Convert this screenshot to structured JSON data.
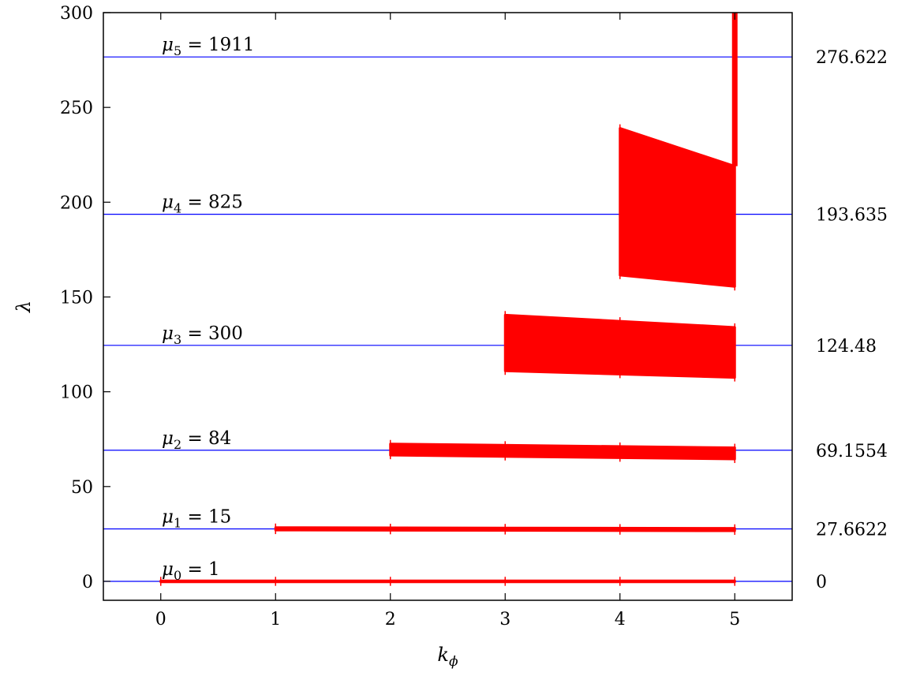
{
  "chart_data": {
    "type": "line",
    "xlabel": "k",
    "xlabel_sub": "ϕ",
    "ylabel": "λ",
    "xlim": [
      -0.5,
      5.5
    ],
    "ylim": [
      -10,
      300
    ],
    "x_ticks": [
      "0",
      "1",
      "2",
      "3",
      "4",
      "5"
    ],
    "y_ticks": [
      "0",
      "50",
      "100",
      "150",
      "200",
      "250",
      "300"
    ],
    "grid": false,
    "colors": {
      "reference_line": "#0000ff",
      "bands": "#ff0000"
    },
    "reference_lines": [
      {
        "y": 0,
        "mu_index": "0",
        "mu_value": "1",
        "right_label": "0"
      },
      {
        "y": 27.6622,
        "mu_index": "1",
        "mu_value": "15",
        "right_label": "27.6622"
      },
      {
        "y": 69.1554,
        "mu_index": "2",
        "mu_value": "84",
        "right_label": "69.1554"
      },
      {
        "y": 124.48,
        "mu_index": "3",
        "mu_value": "300",
        "right_label": "124.48"
      },
      {
        "y": 193.635,
        "mu_index": "4",
        "mu_value": "825",
        "right_label": "193.635"
      },
      {
        "y": 276.622,
        "mu_index": "5",
        "mu_value": "1911",
        "right_label": "276.622"
      }
    ],
    "bands": [
      {
        "name": "",
        "start": 0,
        "top": [
          [
            0,
            0.3
          ],
          [
            5,
            0.3
          ]
        ],
        "bottom": [
          [
            0,
            -0.3
          ],
          [
            5,
            -0.3
          ]
        ]
      },
      {
        "name": "",
        "start": 1,
        "top": [
          [
            1,
            28.4
          ],
          [
            5,
            28.0
          ]
        ],
        "bottom": [
          [
            1,
            27.0
          ],
          [
            5,
            26.6
          ]
        ]
      },
      {
        "name": "",
        "start": 2,
        "top": [
          [
            2,
            72.5
          ],
          [
            5,
            70.5
          ]
        ],
        "bottom": [
          [
            2,
            66.5
          ],
          [
            5,
            64.5
          ]
        ]
      },
      {
        "name": "",
        "start": 3,
        "top": [
          [
            3,
            140.5
          ],
          [
            5,
            134.0
          ]
        ],
        "bottom": [
          [
            3,
            111.0
          ],
          [
            5,
            107.5
          ]
        ]
      },
      {
        "name": "",
        "start": 4,
        "top": [
          [
            4,
            239.0
          ],
          [
            5,
            219.0
          ]
        ],
        "bottom": [
          [
            4,
            161.5
          ],
          [
            5,
            155.5
          ]
        ]
      },
      {
        "name": "",
        "start": 5,
        "top": [
          [
            5,
            300
          ]
        ],
        "bottom": [
          [
            5,
            219.0
          ]
        ]
      }
    ]
  }
}
